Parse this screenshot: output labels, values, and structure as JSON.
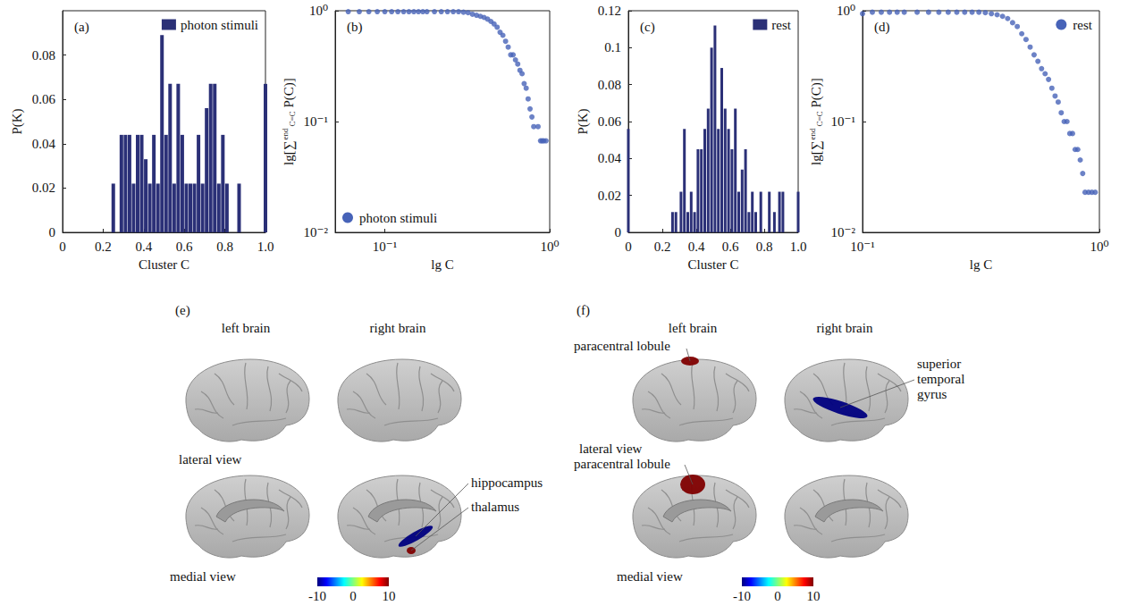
{
  "chart_data": [
    {
      "type": "bar",
      "label": "(a)",
      "x_label": "Cluster C",
      "y_label": "P(K)",
      "series": [
        {
          "name": "photon stimuli",
          "color": "#2b3077",
          "x": [
            0.25,
            0.29,
            0.31,
            0.33,
            0.35,
            0.37,
            0.39,
            0.41,
            0.43,
            0.45,
            0.47,
            0.49,
            0.51,
            0.53,
            0.55,
            0.57,
            0.59,
            0.61,
            0.63,
            0.65,
            0.67,
            0.69,
            0.71,
            0.73,
            0.75,
            0.77,
            0.79,
            0.81,
            0.87,
            1.0
          ],
          "values": [
            0.022,
            0.044,
            0.044,
            0.044,
            0.022,
            0.044,
            0.044,
            0.033,
            0.022,
            0.044,
            0.022,
            0.089,
            0.044,
            0.067,
            0.022,
            0.067,
            0.044,
            0.022,
            0.022,
            0.022,
            0.044,
            0.022,
            0.056,
            0.067,
            0.067,
            0.022,
            0.044,
            0.022,
            0.022,
            0.067
          ]
        }
      ],
      "xlim": [
        0,
        1
      ],
      "xticks": [
        0,
        0.2,
        0.4,
        0.6,
        0.8,
        {
          "value": 1,
          "label": "1.0"
        }
      ],
      "ylim": [
        0,
        0.1
      ],
      "yticks": [
        0,
        0.02,
        0.04,
        0.06,
        0.08
      ],
      "legend": "upper right",
      "grid": false
    },
    {
      "type": "scatter",
      "label": "(b)",
      "x_label": "lg C",
      "y_label": {
        "before": "lg[∑",
        "upper": "end",
        "lower": "C=C",
        "after": "P(C)]"
      },
      "marker": "circle",
      "series": [
        {
          "name": "photon stimuli",
          "color": "#4763b8",
          "x": [
            0.06,
            0.07,
            0.08,
            0.09,
            0.1,
            0.11,
            0.12,
            0.13,
            0.14,
            0.15,
            0.16,
            0.17,
            0.18,
            0.2,
            0.22,
            0.24,
            0.26,
            0.28,
            0.3,
            0.32,
            0.34,
            0.36,
            0.38,
            0.4,
            0.42,
            0.44,
            0.46,
            0.48,
            0.5,
            0.52,
            0.54,
            0.56,
            0.58,
            0.6,
            0.62,
            0.64,
            0.66,
            0.68,
            0.7,
            0.72,
            0.74,
            0.76,
            0.78,
            0.8,
            0.85,
            0.88,
            0.9,
            0.92,
            0.95
          ],
          "values": [
            0.98,
            0.98,
            0.98,
            0.98,
            0.98,
            0.98,
            0.98,
            0.98,
            0.98,
            0.98,
            0.98,
            0.98,
            0.98,
            0.98,
            0.98,
            0.98,
            0.98,
            0.98,
            0.97,
            0.96,
            0.93,
            0.91,
            0.89,
            0.87,
            0.84,
            0.8,
            0.76,
            0.71,
            0.64,
            0.6,
            0.53,
            0.47,
            0.4,
            0.4,
            0.36,
            0.33,
            0.29,
            0.27,
            0.22,
            0.2,
            0.16,
            0.13,
            0.11,
            0.09,
            0.09,
            0.067,
            0.067,
            0.067,
            0.067
          ]
        }
      ],
      "log": true,
      "xlim": [
        0.05,
        1
      ],
      "xticks": [
        {
          "value": 0.1,
          "label": "10⁻¹"
        },
        {
          "value": 1,
          "label": "10⁰"
        }
      ],
      "ylim": [
        0.01,
        1
      ],
      "yticks": [
        {
          "value": 0.01,
          "label": "10⁻²"
        },
        {
          "value": 0.1,
          "label": "10⁻¹"
        },
        {
          "value": 1,
          "label": "10⁰"
        }
      ],
      "legend": "lower left",
      "grid": false
    },
    {
      "type": "bar",
      "label": "(c)",
      "x_label": "Cluster C",
      "y_label": "P(K)",
      "series": [
        {
          "name": "rest",
          "color": "#2b3077",
          "x": [
            0,
            0.26,
            0.28,
            0.31,
            0.33,
            0.35,
            0.37,
            0.39,
            0.41,
            0.43,
            0.45,
            0.47,
            0.49,
            0.51,
            0.53,
            0.55,
            0.57,
            0.59,
            0.61,
            0.63,
            0.65,
            0.67,
            0.69,
            0.71,
            0.73,
            0.75,
            0.78,
            0.83,
            0.86,
            0.89,
            0.91,
            1.0
          ],
          "values": [
            0.056,
            0.011,
            0.011,
            0.022,
            0.056,
            0.011,
            0.022,
            0.011,
            0.045,
            0.045,
            0.056,
            0.067,
            0.1,
            0.112,
            0.056,
            0.089,
            0.067,
            0.056,
            0.045,
            0.067,
            0.022,
            0.034,
            0.045,
            0.011,
            0.022,
            0.011,
            0.022,
            0.022,
            0.011,
            0.022,
            0.022,
            0.022
          ]
        }
      ],
      "xlim": [
        0,
        1
      ],
      "xticks": [
        0,
        0.2,
        0.4,
        0.6,
        0.8,
        {
          "value": 1,
          "label": "1.0"
        }
      ],
      "ylim": [
        0,
        0.12
      ],
      "yticks": [
        0,
        0.02,
        0.04,
        0.06,
        0.08,
        0.1,
        0.12
      ],
      "legend": "upper right",
      "grid": false
    },
    {
      "type": "scatter",
      "label": "(d)",
      "x_label": "lg C",
      "y_label": {
        "before": "lg[∑",
        "upper": "end",
        "lower": "C=C",
        "after": "P(C)]"
      },
      "marker": "circle",
      "series": [
        {
          "name": "rest",
          "color": "#4763b8",
          "x": [
            0.1,
            0.11,
            0.12,
            0.13,
            0.14,
            0.15,
            0.17,
            0.19,
            0.21,
            0.23,
            0.25,
            0.27,
            0.29,
            0.31,
            0.33,
            0.35,
            0.37,
            0.39,
            0.41,
            0.43,
            0.45,
            0.47,
            0.49,
            0.51,
            0.53,
            0.55,
            0.57,
            0.59,
            0.61,
            0.63,
            0.65,
            0.67,
            0.69,
            0.71,
            0.73,
            0.75,
            0.77,
            0.79,
            0.81,
            0.83,
            0.85,
            0.87,
            0.9,
            0.93,
            0.96
          ],
          "values": [
            0.94,
            0.97,
            0.97,
            0.97,
            0.97,
            0.97,
            0.97,
            0.97,
            0.97,
            0.97,
            0.97,
            0.97,
            0.97,
            0.97,
            0.96,
            0.94,
            0.92,
            0.89,
            0.85,
            0.78,
            0.72,
            0.62,
            0.55,
            0.47,
            0.4,
            0.35,
            0.3,
            0.27,
            0.24,
            0.2,
            0.17,
            0.15,
            0.12,
            0.1,
            0.1,
            0.078,
            0.078,
            0.056,
            0.056,
            0.045,
            0.034,
            0.023,
            0.023,
            0.023,
            0.023
          ]
        }
      ],
      "log": true,
      "xlim": [
        0.1,
        1
      ],
      "xticks": [
        {
          "value": 0.1,
          "label": "10⁻¹"
        },
        {
          "value": 1,
          "label": "10⁰"
        }
      ],
      "ylim": [
        0.01,
        1
      ],
      "yticks": [
        {
          "value": 0.01,
          "label": "10⁻²"
        },
        {
          "value": 0.1,
          "label": "10⁻¹"
        },
        {
          "value": 1,
          "label": "10⁰"
        }
      ],
      "legend": "upper right",
      "grid": false
    }
  ],
  "brain_maps": {
    "hemisphere_labels": [
      "left brain",
      "right brain"
    ],
    "view_labels": [
      "lateral view",
      "medial view"
    ],
    "colorbar": {
      "range": [
        -10,
        10
      ],
      "ticks": [
        -10,
        0,
        10
      ]
    },
    "panels": [
      {
        "label": "(e)",
        "regions": [
          {
            "name": "hippocampus",
            "hemisphere": "right",
            "view": "medial",
            "value": -10
          },
          {
            "name": "thalamus",
            "hemisphere": "right",
            "view": "medial",
            "value": 10
          }
        ]
      },
      {
        "label": "(f)",
        "regions": [
          {
            "name": "paracentral lobule",
            "hemisphere": "left",
            "view": "lateral",
            "value": 10
          },
          {
            "name": "paracentral lobule",
            "hemisphere": "left",
            "view": "medial",
            "value": 10
          },
          {
            "name": "superior temporal gyrus",
            "hemisphere": "right",
            "view": "lateral",
            "value": -10
          }
        ]
      }
    ]
  }
}
